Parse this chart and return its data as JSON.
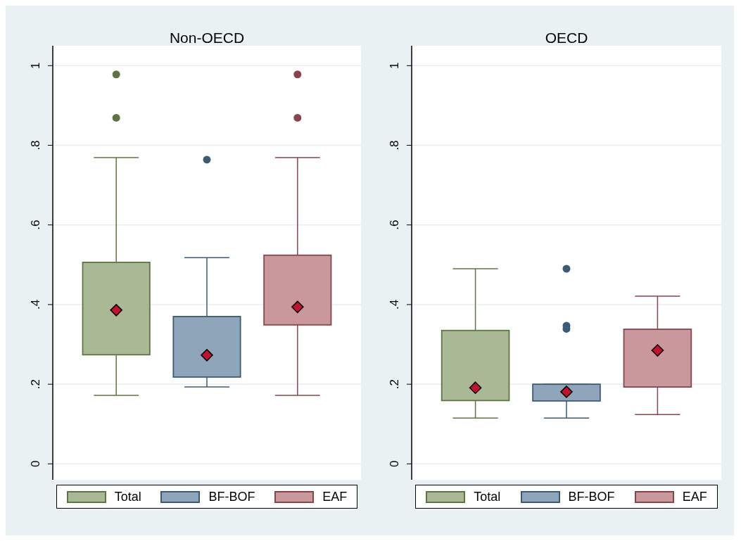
{
  "chart_data": [
    {
      "type": "box",
      "title": "Non-OECD",
      "categories": [
        null
      ],
      "ylim": [
        -0.04,
        1.05
      ],
      "yticks": [
        {
          "value": 0,
          "label": "0"
        },
        {
          "value": 0.2,
          "label": ".2"
        },
        {
          "value": 0.4,
          "label": ".4"
        },
        {
          "value": 0.6,
          "label": ".6"
        },
        {
          "value": 0.8,
          "label": ".8"
        },
        {
          "value": 1,
          "label": "1"
        }
      ],
      "grid": "y",
      "legend": "bottom",
      "marker": "diamond",
      "tick_labels": "y",
      "series": [
        {
          "name": "Total",
          "color": "#aab995",
          "boxes": [
            {
              "low": 0.172,
              "q1": 0.274,
              "median": 0.386,
              "q3": 0.506,
              "high": 0.769,
              "outliers": [
                0.978,
                0.869
              ]
            }
          ]
        },
        {
          "name": "BF-BOF",
          "color": "#8fa5b9",
          "boxes": [
            {
              "low": 0.193,
              "q1": 0.218,
              "median": 0.273,
              "q3": 0.37,
              "high": 0.518,
              "outliers": [
                0.764
              ]
            }
          ]
        },
        {
          "name": "EAF",
          "color": "#c9989c",
          "boxes": [
            {
              "low": 0.172,
              "q1": 0.349,
              "median": 0.394,
              "q3": 0.524,
              "high": 0.769,
              "outliers": [
                0.978,
                0.869
              ]
            }
          ]
        }
      ]
    },
    {
      "type": "box",
      "title": "OECD",
      "categories": [
        null
      ],
      "ylim": [
        -0.04,
        1.05
      ],
      "yticks": [
        {
          "value": 0,
          "label": "0"
        },
        {
          "value": 0.2,
          "label": ".2"
        },
        {
          "value": 0.4,
          "label": ".4"
        },
        {
          "value": 0.6,
          "label": ".6"
        },
        {
          "value": 0.8,
          "label": ".8"
        },
        {
          "value": 1,
          "label": "1"
        }
      ],
      "grid": "y",
      "legend": "bottom",
      "marker": "diamond",
      "tick_labels": "y",
      "series": [
        {
          "name": "Total",
          "color": "#aab995",
          "boxes": [
            {
              "low": 0.115,
              "q1": 0.159,
              "median": 0.191,
              "q3": 0.335,
              "high": 0.49
            }
          ]
        },
        {
          "name": "BF-BOF",
          "color": "#8fa5b9",
          "boxes": [
            {
              "low": 0.115,
              "q1": 0.158,
              "median": 0.181,
              "q3": 0.2,
              "high": 0.2,
              "outliers": [
                0.49,
                0.347,
                0.339
              ]
            }
          ]
        },
        {
          "name": "EAF",
          "color": "#c9989c",
          "boxes": [
            {
              "low": 0.124,
              "q1": 0.193,
              "median": 0.285,
              "q3": 0.338,
              "high": 0.421
            }
          ]
        }
      ]
    }
  ]
}
